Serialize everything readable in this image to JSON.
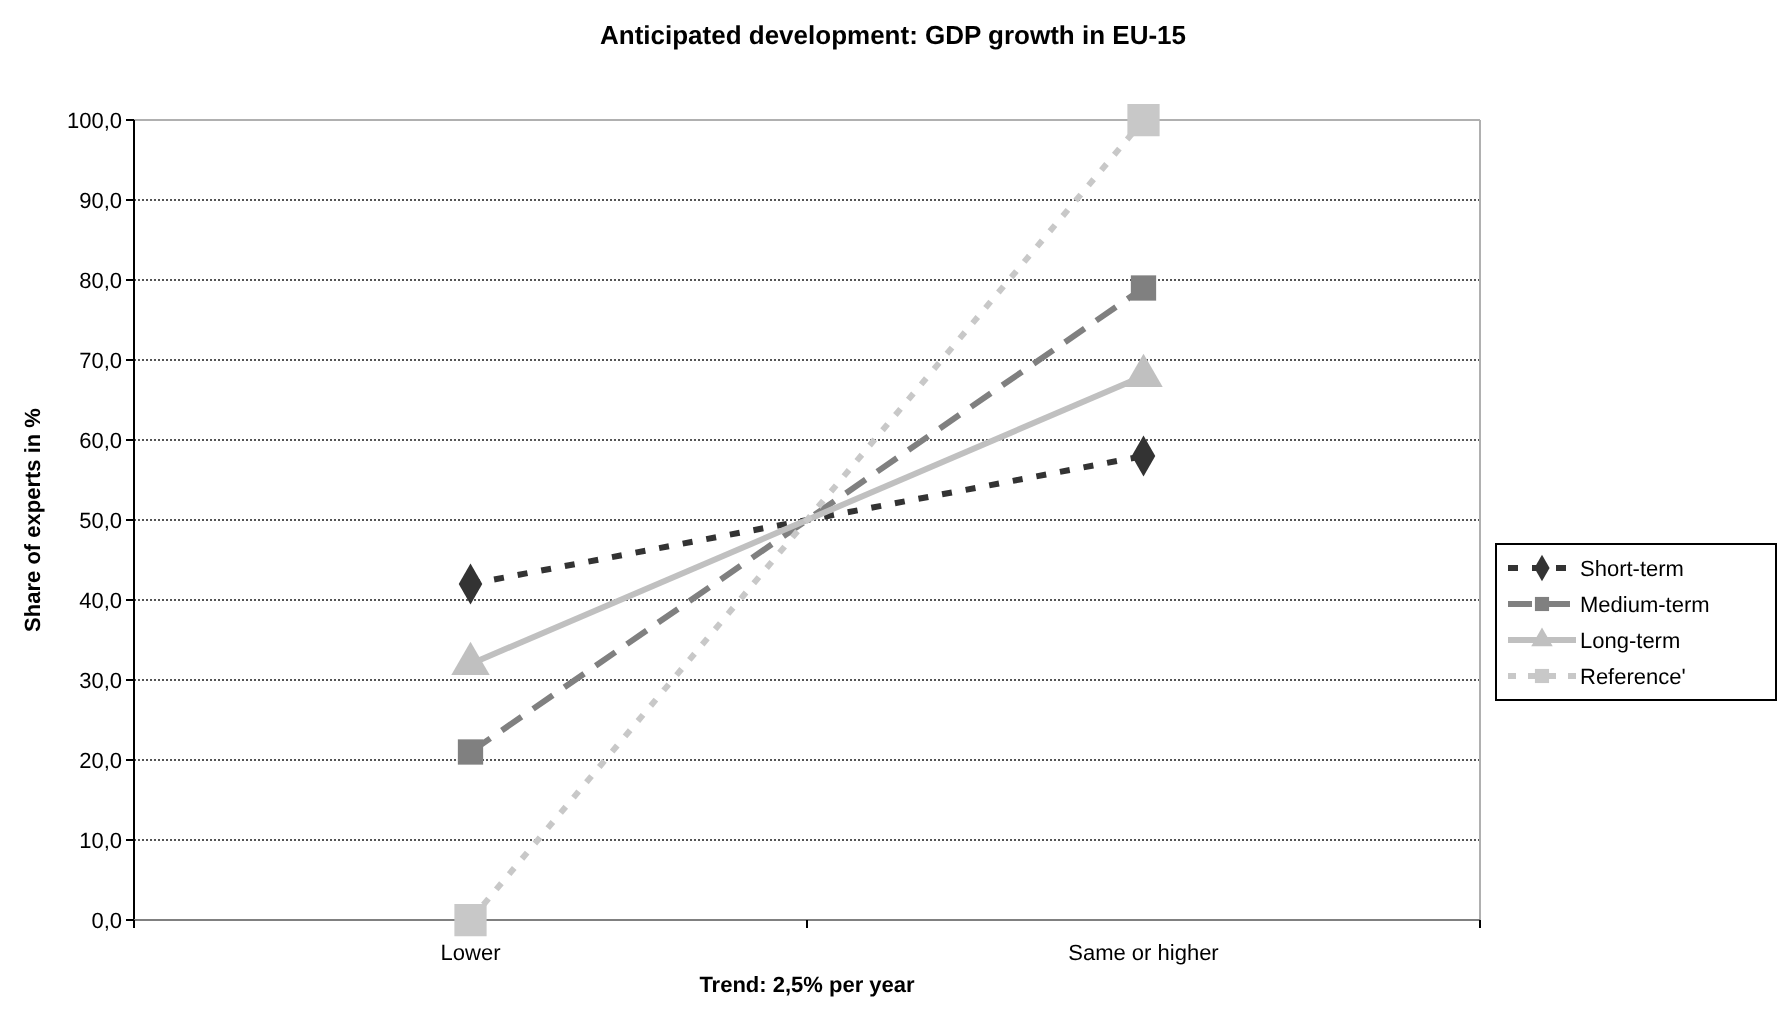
{
  "chart_data": {
    "type": "line",
    "title": "Anticipated development: GDP growth in EU-15",
    "xlabel": "Trend: 2,5% per year",
    "ylabel": "Share of experts in %",
    "categories": [
      "Lower",
      "Same or higher"
    ],
    "series": [
      {
        "name": "Short-term",
        "color": "#333333",
        "values": [
          42,
          58
        ],
        "marker": "diamond",
        "line_style": "dashed"
      },
      {
        "name": "Medium-term",
        "color": "#808080",
        "values": [
          21,
          79
        ],
        "marker": "square",
        "line_style": "dashed"
      },
      {
        "name": "Long-term",
        "color": "#c0c0c0",
        "values": [
          32,
          68
        ],
        "marker": "triangle",
        "line_style": "solid"
      },
      {
        "name": "Reference'",
        "color": "#c8c8c8",
        "values": [
          0,
          100
        ],
        "marker": "square",
        "line_style": "dotted"
      }
    ],
    "ylim": [
      0,
      100
    ],
    "yticks": [
      {
        "value": 0,
        "label": "0,0"
      },
      {
        "value": 10,
        "label": "10,0"
      },
      {
        "value": 20,
        "label": "20,0"
      },
      {
        "value": 30,
        "label": "30,0"
      },
      {
        "value": 40,
        "label": "40,0"
      },
      {
        "value": 50,
        "label": "50,0"
      },
      {
        "value": 60,
        "label": "60,0"
      },
      {
        "value": 70,
        "label": "70,0"
      },
      {
        "value": 80,
        "label": "80,0"
      },
      {
        "value": 90,
        "label": "90,0"
      },
      {
        "value": 100,
        "label": "100,0"
      }
    ],
    "grid": "y",
    "legend": "right"
  }
}
